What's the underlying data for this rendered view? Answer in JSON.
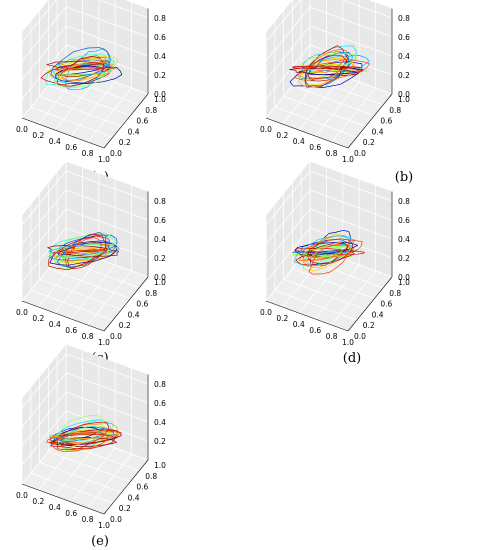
{
  "figure": {
    "panel_labels": [
      "(a)",
      "(b)",
      "(c)",
      "(d)",
      "(e)"
    ]
  },
  "chart_data": [
    {
      "panel": "(a)",
      "type": "line3d",
      "xlim": [
        0,
        1
      ],
      "ylim": [
        0,
        1
      ],
      "zlim": [
        0,
        0.9
      ],
      "x_ticks": [
        "0.0",
        "0.2",
        "0.4",
        "0.6",
        "0.8",
        "1.0"
      ],
      "y_ticks": [
        "0.0",
        "0.2",
        "0.4",
        "0.6",
        "0.8",
        "1.0"
      ],
      "z_ticks": [
        "0.0",
        "0.2",
        "0.4",
        "0.6",
        "0.8"
      ],
      "grid": true,
      "series_count": 22,
      "series_colors": [
        "#0000cc",
        "#0044ff",
        "#00aaff",
        "#00e5ff",
        "#33ffcc",
        "#66ff66",
        "#aaff00",
        "#e5e500",
        "#ffcc00",
        "#ff9900",
        "#ff6600",
        "#ff3300",
        "#dd0000",
        "#aa0000",
        "#880000",
        "#0000aa",
        "#0066cc",
        "#22ccee",
        "#99ff55",
        "#ffaa33",
        "#cc0000",
        "#ff4400"
      ]
    },
    {
      "panel": "(b)",
      "type": "line3d",
      "xlim": [
        0,
        1
      ],
      "ylim": [
        0,
        1
      ],
      "zlim": [
        0,
        0.9
      ],
      "x_ticks": [
        "0.0",
        "0.2",
        "0.4",
        "0.6",
        "0.8",
        "1.0"
      ],
      "y_ticks": [
        "0.0",
        "0.2",
        "0.4",
        "0.6",
        "0.8",
        "1.0"
      ],
      "z_ticks": [
        "0.0",
        "0.2",
        "0.4",
        "0.6",
        "0.8"
      ],
      "grid": true,
      "series_count": 22,
      "series_colors": [
        "#0000cc",
        "#0044ff",
        "#00aaff",
        "#00e5ff",
        "#33ffcc",
        "#66ff66",
        "#aaff00",
        "#e5e500",
        "#ffcc00",
        "#ff9900",
        "#ff6600",
        "#ff3300",
        "#dd0000",
        "#aa0000",
        "#880000",
        "#0000aa",
        "#0066cc",
        "#22ccee",
        "#99ff55",
        "#ffaa33",
        "#cc0000",
        "#ff4400"
      ]
    },
    {
      "panel": "(c)",
      "type": "line3d",
      "xlim": [
        0,
        1
      ],
      "ylim": [
        0,
        1
      ],
      "zlim": [
        0,
        0.9
      ],
      "x_ticks": [
        "0.0",
        "0.2",
        "0.4",
        "0.6",
        "0.8",
        "1.0"
      ],
      "y_ticks": [
        "0.0",
        "0.2",
        "0.4",
        "0.6",
        "0.8",
        "1.0"
      ],
      "z_ticks": [
        "0.0",
        "0.2",
        "0.4",
        "0.6",
        "0.8"
      ],
      "grid": true,
      "series_count": 22,
      "series_colors": [
        "#0000cc",
        "#0044ff",
        "#00aaff",
        "#00e5ff",
        "#33ffcc",
        "#66ff66",
        "#aaff00",
        "#e5e500",
        "#ffcc00",
        "#ff9900",
        "#ff6600",
        "#ff3300",
        "#dd0000",
        "#aa0000",
        "#880000",
        "#0000aa",
        "#0066cc",
        "#22ccee",
        "#99ff55",
        "#ffaa33",
        "#cc0000",
        "#ff4400"
      ]
    },
    {
      "panel": "(d)",
      "type": "line3d",
      "xlim": [
        0,
        1
      ],
      "ylim": [
        0,
        1
      ],
      "zlim": [
        0,
        0.9
      ],
      "x_ticks": [
        "0.0",
        "0.2",
        "0.4",
        "0.6",
        "0.8",
        "1.0"
      ],
      "y_ticks": [
        "0.0",
        "0.2",
        "0.4",
        "0.6",
        "0.8",
        "1.0"
      ],
      "z_ticks": [
        "0.0",
        "0.2",
        "0.4",
        "0.6",
        "0.8"
      ],
      "grid": true,
      "series_count": 22,
      "series_colors": [
        "#0000cc",
        "#0044ff",
        "#00aaff",
        "#00e5ff",
        "#33ffcc",
        "#66ff66",
        "#aaff00",
        "#e5e500",
        "#ffcc00",
        "#ff9900",
        "#ff6600",
        "#ff3300",
        "#dd0000",
        "#aa0000",
        "#880000",
        "#0000aa",
        "#0066cc",
        "#22ccee",
        "#99ff55",
        "#ffaa33",
        "#cc0000",
        "#ff4400"
      ]
    },
    {
      "panel": "(e)",
      "type": "line3d",
      "xlim": [
        0,
        1
      ],
      "ylim": [
        0,
        1
      ],
      "zlim": [
        0,
        0.9
      ],
      "x_ticks": [
        "0.0",
        "0.2",
        "0.4",
        "0.6",
        "0.8",
        "1.0"
      ],
      "y_ticks": [
        "0.0",
        "0.2",
        "0.4",
        "0.6",
        "0.8",
        "1.0"
      ],
      "z_ticks": [
        "0.2",
        "0.4",
        "0.6",
        "0.8"
      ],
      "grid": true,
      "series_count": 22,
      "series_colors": [
        "#0000cc",
        "#0044ff",
        "#00aaff",
        "#00e5ff",
        "#33ffcc",
        "#66ff66",
        "#aaff00",
        "#e5e500",
        "#ffcc00",
        "#ff9900",
        "#ff6600",
        "#ff3300",
        "#dd0000",
        "#aa0000",
        "#880000",
        "#0000aa",
        "#0066cc",
        "#22ccee",
        "#99ff55",
        "#ffaa33",
        "#cc0000",
        "#ff4400"
      ]
    }
  ]
}
